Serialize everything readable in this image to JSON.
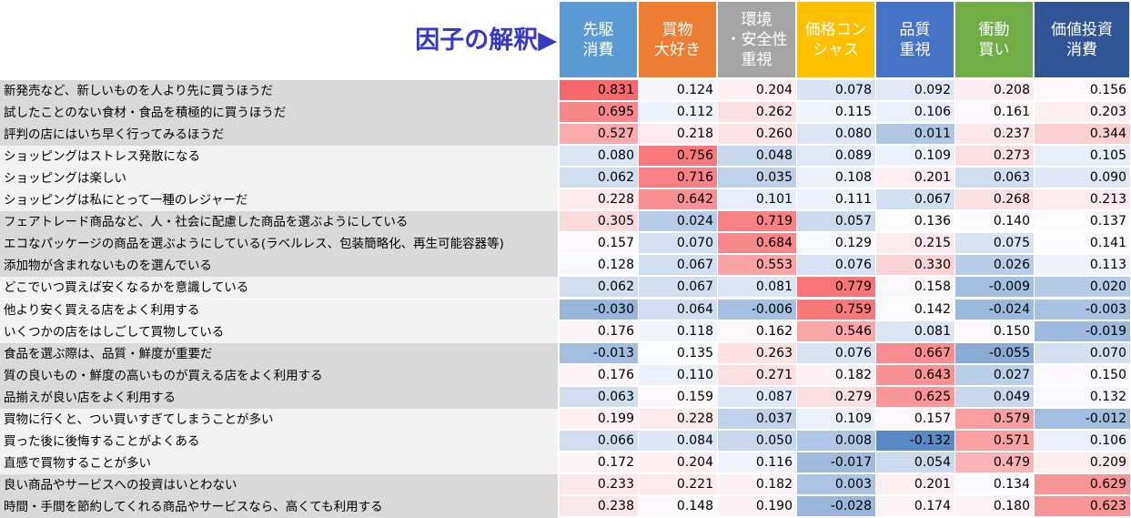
{
  "title": "因子の解釈▶",
  "columns": [
    {
      "label": "先駆\n消費",
      "color": "#5b9bd5"
    },
    {
      "label": "買物\n大好き",
      "color": "#ed7d31"
    },
    {
      "label": "環境\n・安全性\n重視",
      "color": "#a5a5a5"
    },
    {
      "label": "価格コン\nシャス",
      "color": "#ffc000"
    },
    {
      "label": "品質\n重視",
      "color": "#4472c4"
    },
    {
      "label": "衝動\n買い",
      "color": "#70ad47"
    },
    {
      "label": "価値投資\n消費",
      "color": "#2f5597"
    }
  ],
  "rows": [
    {
      "label": "新発売など、新しいものを人より先に買うほうだ",
      "values": [
        "0.831",
        "0.124",
        "0.204",
        "0.078",
        "0.092",
        "0.208",
        "0.156"
      ]
    },
    {
      "label": "試したことのない食材・食品を積極的に買うほうだ",
      "values": [
        "0.695",
        "0.112",
        "0.262",
        "0.115",
        "0.106",
        "0.161",
        "0.203"
      ]
    },
    {
      "label": "評判の店にはいち早く行ってみるほうだ",
      "values": [
        "0.527",
        "0.218",
        "0.260",
        "0.080",
        "0.011",
        "0.237",
        "0.344"
      ]
    },
    {
      "label": "ショッピングはストレス発散になる",
      "values": [
        "0.080",
        "0.756",
        "0.048",
        "0.089",
        "0.109",
        "0.273",
        "0.105"
      ]
    },
    {
      "label": "ショッピングは楽しい",
      "values": [
        "0.062",
        "0.716",
        "0.035",
        "0.108",
        "0.201",
        "0.063",
        "0.090"
      ]
    },
    {
      "label": "ショッピングは私にとって一種のレジャーだ",
      "values": [
        "0.228",
        "0.642",
        "0.101",
        "0.111",
        "0.067",
        "0.268",
        "0.213"
      ]
    },
    {
      "label": "フェアトレード商品など、人・社会に配慮した商品を選ぶようにしている",
      "values": [
        "0.305",
        "0.024",
        "0.719",
        "0.057",
        "0.136",
        "0.140",
        "0.137"
      ]
    },
    {
      "label": "エコなパッケージの商品を選ぶようにしている(ラベルレス、包装簡略化、再生可能容器等)",
      "values": [
        "0.157",
        "0.070",
        "0.684",
        "0.129",
        "0.215",
        "0.075",
        "0.141"
      ]
    },
    {
      "label": "添加物が含まれないものを選んでいる",
      "values": [
        "0.128",
        "0.067",
        "0.553",
        "0.076",
        "0.330",
        "0.026",
        "0.113"
      ]
    },
    {
      "label": "どこでいつ買えば安くなるかを意識している",
      "values": [
        "0.062",
        "0.067",
        "0.081",
        "0.779",
        "0.158",
        "-0.009",
        "0.020"
      ]
    },
    {
      "label": "他より安く買える店をよく利用する",
      "values": [
        "-0.030",
        "0.064",
        "-0.006",
        "0.759",
        "0.142",
        "-0.024",
        "-0.003"
      ]
    },
    {
      "label": "いくつかの店をはしごして買物している",
      "values": [
        "0.176",
        "0.118",
        "0.162",
        "0.546",
        "0.081",
        "0.150",
        "-0.019"
      ]
    },
    {
      "label": "食品を選ぶ際は、品質・鮮度が重要だ",
      "values": [
        "-0.013",
        "0.135",
        "0.263",
        "0.076",
        "0.667",
        "-0.055",
        "0.070"
      ]
    },
    {
      "label": "質の良いもの・鮮度の高いものが買える店をよく利用する",
      "values": [
        "0.176",
        "0.110",
        "0.271",
        "0.182",
        "0.643",
        "0.027",
        "0.150"
      ]
    },
    {
      "label": "品揃えが良い店をよく利用する",
      "values": [
        "0.063",
        "0.159",
        "0.087",
        "0.279",
        "0.625",
        "0.049",
        "0.132"
      ]
    },
    {
      "label": "買物に行くと、つい買いすぎてしまうことが多い",
      "values": [
        "0.199",
        "0.228",
        "0.037",
        "0.109",
        "0.157",
        "0.579",
        "-0.012"
      ]
    },
    {
      "label": "買った後に後悔することがよくある",
      "values": [
        "0.066",
        "0.084",
        "0.050",
        "0.008",
        "-0.132",
        "0.571",
        "0.106"
      ]
    },
    {
      "label": "直感で買物することが多い",
      "values": [
        "0.172",
        "0.204",
        "0.116",
        "-0.017",
        "0.054",
        "0.479",
        "0.209"
      ]
    },
    {
      "label": "良い商品やサービスへの投資はいとわない",
      "values": [
        "0.233",
        "0.221",
        "0.182",
        "0.003",
        "0.201",
        "0.134",
        "0.629"
      ]
    },
    {
      "label": "時間・手間を節約してくれる商品やサービスなら、高くても利用する",
      "values": [
        "0.238",
        "0.148",
        "0.190",
        "-0.028",
        "0.174",
        "0.180",
        "0.623"
      ]
    }
  ]
}
